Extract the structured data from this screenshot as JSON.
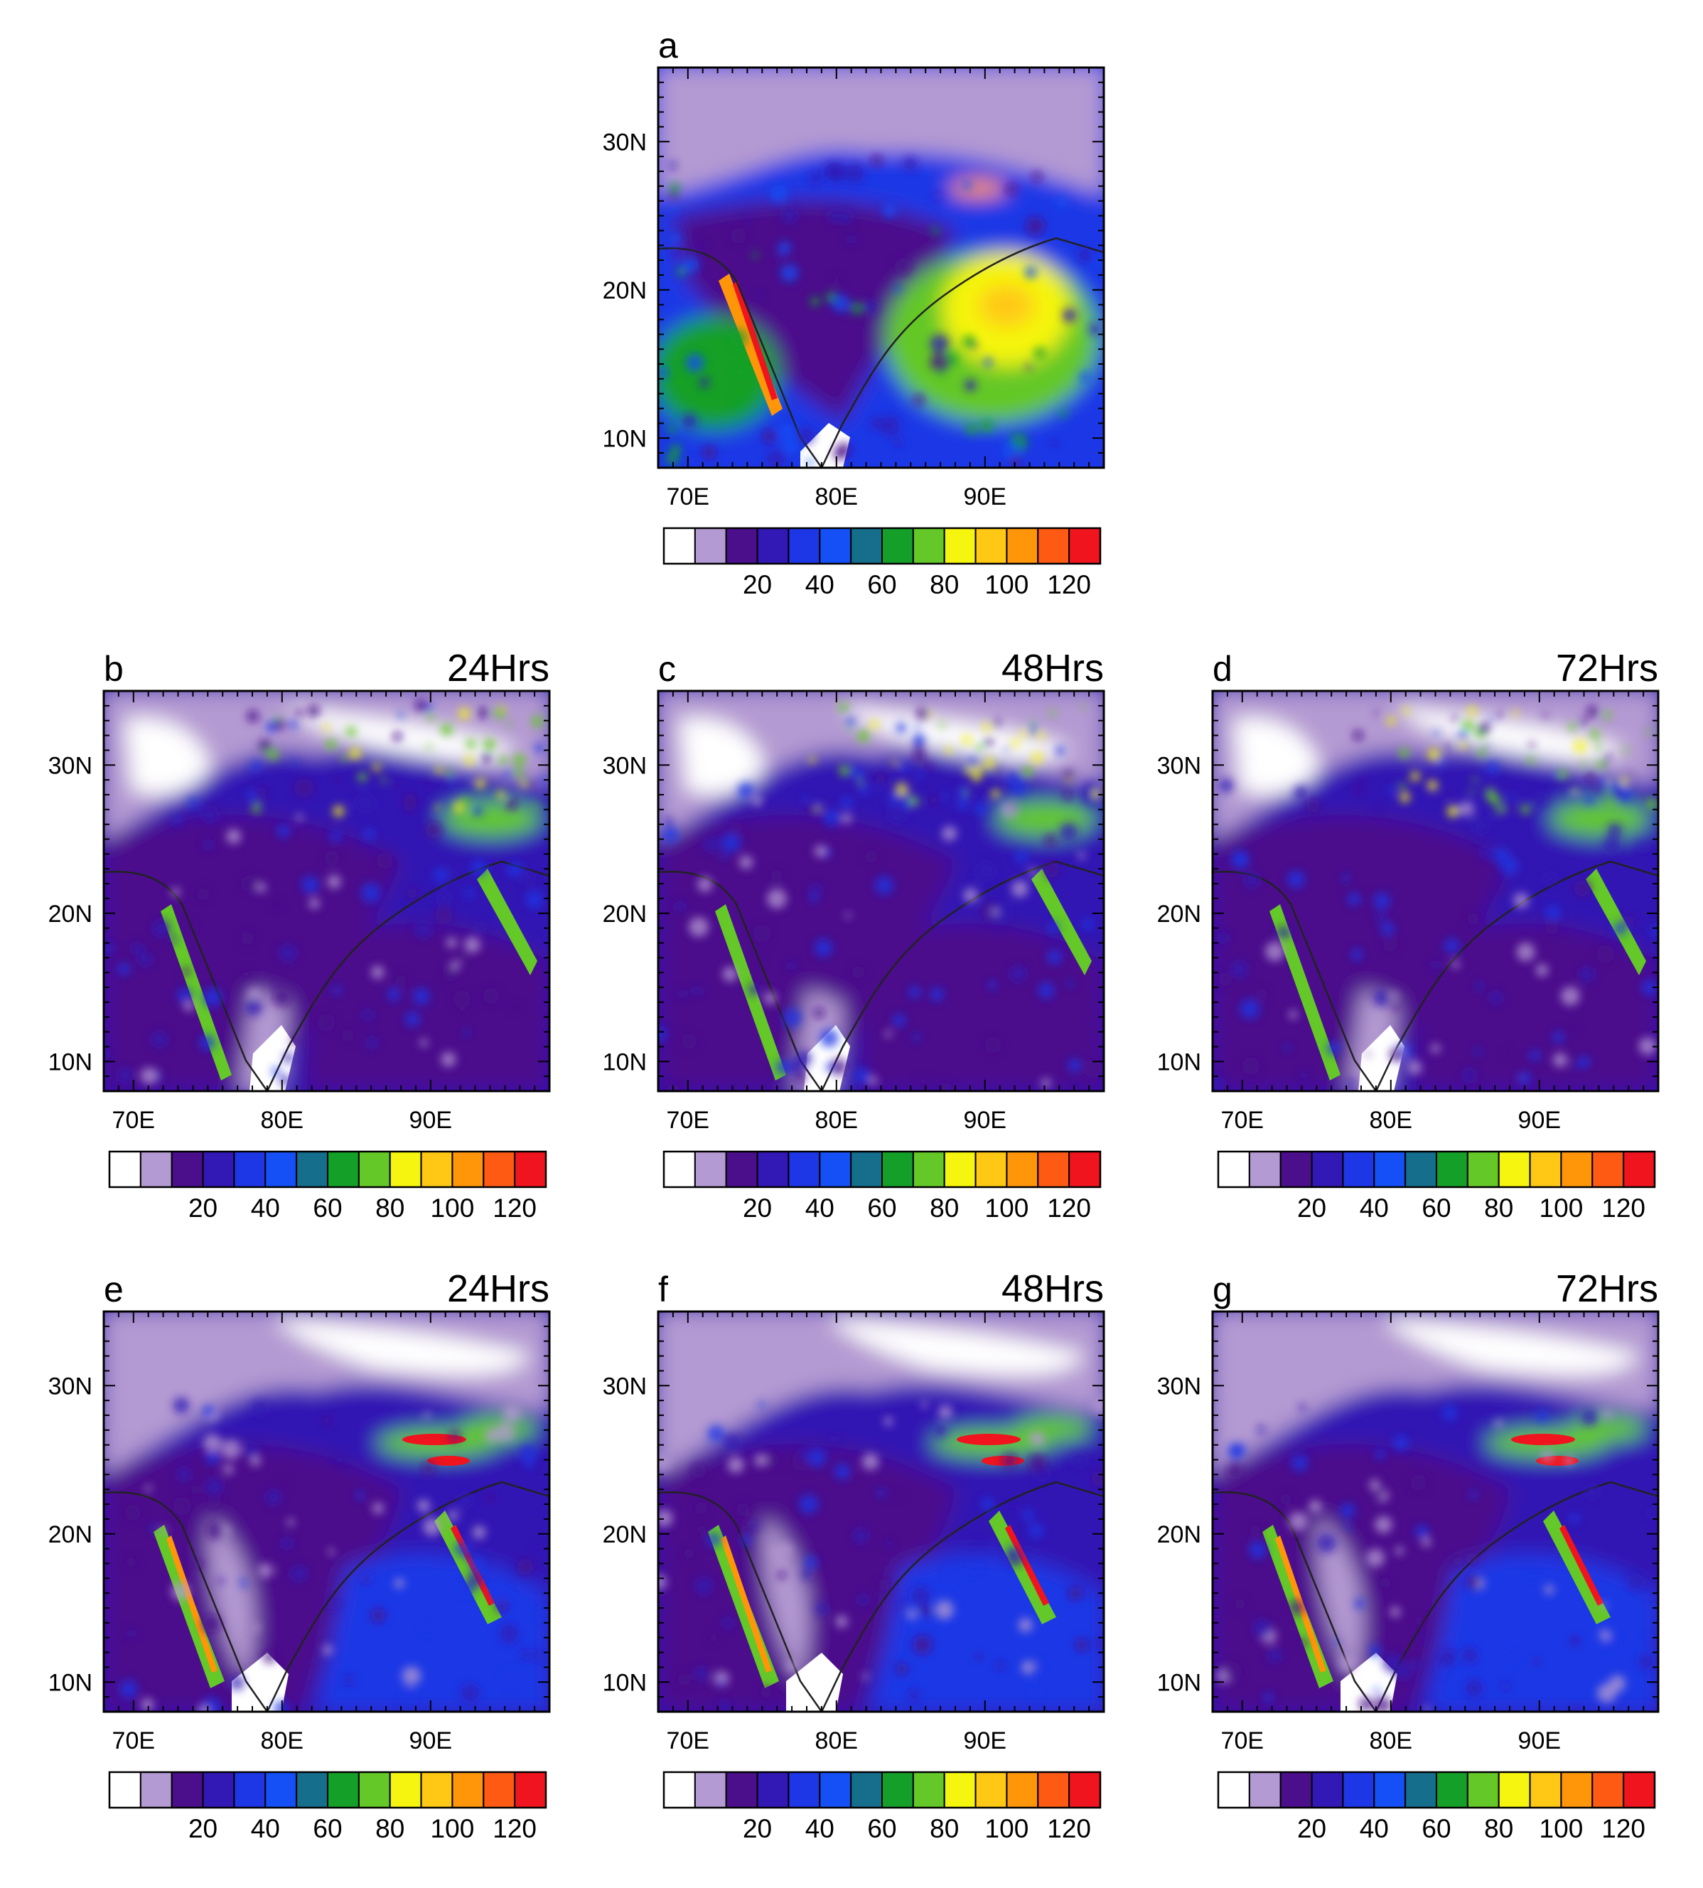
{
  "chart_data": [
    {
      "type": "heatmap",
      "panel": "a",
      "time_label": "",
      "x_ticks": [
        "70E",
        "80E",
        "90E"
      ],
      "y_ticks": [
        "10N",
        "20N",
        "30N"
      ],
      "xlim": [
        68,
        98
      ],
      "ylim": [
        8,
        35
      ],
      "colorbar_levels": [
        20,
        40,
        60,
        80,
        100,
        120
      ],
      "colorbar_labels": [
        "20",
        "40",
        "60",
        "80",
        "100",
        "120"
      ]
    },
    {
      "type": "heatmap",
      "panel": "b",
      "time_label": "24Hrs",
      "x_ticks": [
        "70E",
        "80E",
        "90E"
      ],
      "y_ticks": [
        "10N",
        "20N",
        "30N"
      ],
      "xlim": [
        68,
        98
      ],
      "ylim": [
        8,
        35
      ],
      "colorbar_levels": [
        20,
        40,
        60,
        80,
        100,
        120
      ],
      "colorbar_labels": [
        "20",
        "40",
        "60",
        "80",
        "100",
        "120"
      ]
    },
    {
      "type": "heatmap",
      "panel": "c",
      "time_label": "48Hrs",
      "x_ticks": [
        "70E",
        "80E",
        "90E"
      ],
      "y_ticks": [
        "10N",
        "20N",
        "30N"
      ],
      "xlim": [
        68,
        98
      ],
      "ylim": [
        8,
        35
      ],
      "colorbar_levels": [
        20,
        40,
        60,
        80,
        100,
        120
      ],
      "colorbar_labels": [
        "20",
        "40",
        "60",
        "80",
        "100",
        "120"
      ]
    },
    {
      "type": "heatmap",
      "panel": "d",
      "time_label": "72Hrs",
      "x_ticks": [
        "70E",
        "80E",
        "90E"
      ],
      "y_ticks": [
        "10N",
        "20N",
        "30N"
      ],
      "xlim": [
        68,
        98
      ],
      "ylim": [
        8,
        35
      ],
      "colorbar_levels": [
        20,
        40,
        60,
        80,
        100,
        120
      ],
      "colorbar_labels": [
        "20",
        "40",
        "60",
        "80",
        "100",
        "120"
      ]
    },
    {
      "type": "heatmap",
      "panel": "e",
      "time_label": "24Hrs",
      "x_ticks": [
        "70E",
        "80E",
        "90E"
      ],
      "y_ticks": [
        "10N",
        "20N",
        "30N"
      ],
      "xlim": [
        68,
        98
      ],
      "ylim": [
        8,
        35
      ],
      "colorbar_levels": [
        20,
        40,
        60,
        80,
        100,
        120
      ],
      "colorbar_labels": [
        "20",
        "40",
        "60",
        "80",
        "100",
        "120"
      ]
    },
    {
      "type": "heatmap",
      "panel": "f",
      "time_label": "48Hrs",
      "x_ticks": [
        "70E",
        "80E",
        "90E"
      ],
      "y_ticks": [
        "10N",
        "20N",
        "30N"
      ],
      "xlim": [
        68,
        98
      ],
      "ylim": [
        8,
        35
      ],
      "colorbar_levels": [
        20,
        40,
        60,
        80,
        100,
        120
      ],
      "colorbar_labels": [
        "20",
        "40",
        "60",
        "80",
        "100",
        "120"
      ]
    },
    {
      "type": "heatmap",
      "panel": "g",
      "time_label": "72Hrs",
      "x_ticks": [
        "70E",
        "80E",
        "90E"
      ],
      "y_ticks": [
        "10N",
        "20N",
        "30N"
      ],
      "xlim": [
        68,
        98
      ],
      "ylim": [
        8,
        35
      ],
      "colorbar_levels": [
        20,
        40,
        60,
        80,
        100,
        120
      ],
      "colorbar_labels": [
        "20",
        "40",
        "60",
        "80",
        "100",
        "120"
      ]
    }
  ],
  "colors": {
    "palette": [
      "#ffffff",
      "#b49ad2",
      "#4b0f8c",
      "#3218b4",
      "#1e37e6",
      "#1450f5",
      "#146e8c",
      "#14a028",
      "#64c828",
      "#f5f50f",
      "#ffc814",
      "#ff960a",
      "#ff5a14",
      "#f0141e"
    ],
    "frame": "#000000",
    "coast": "#222222"
  }
}
